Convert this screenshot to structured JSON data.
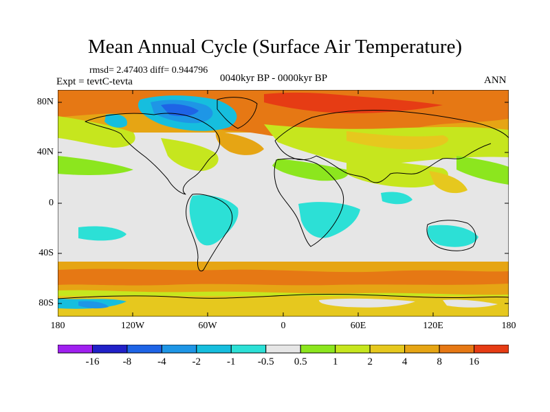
{
  "title": "Mean Annual Cycle (Surface Air Temperature)",
  "stats": "rmsd= 2.47403 diff= 0.944796",
  "experiment": "Expt = tevtC-tevta",
  "period": "0040kyr BP - 0000kyr BP",
  "season": "ANN",
  "lat_labels": [
    "80N",
    "40N",
    "0",
    "40S",
    "80S"
  ],
  "lon_labels": [
    "180",
    "120W",
    "60W",
    "0",
    "60E",
    "120E",
    "180"
  ],
  "colorbar": {
    "colors": [
      "#a020f0",
      "#2121c8",
      "#1e64e6",
      "#1e96e6",
      "#16bede",
      "#2ce0d6",
      "#e6e6e6",
      "#8ce61e",
      "#c6e61e",
      "#e6c81e",
      "#e6a514",
      "#e67814",
      "#e63c14"
    ],
    "labels": [
      "-16",
      "-8",
      "-4",
      "-2",
      "-1",
      "-0.5",
      "0.5",
      "1",
      "2",
      "4",
      "8",
      "16"
    ]
  },
  "map_colors": {
    "ocean_bg": "#e6e6e6",
    "land_outline": "#000000"
  }
}
